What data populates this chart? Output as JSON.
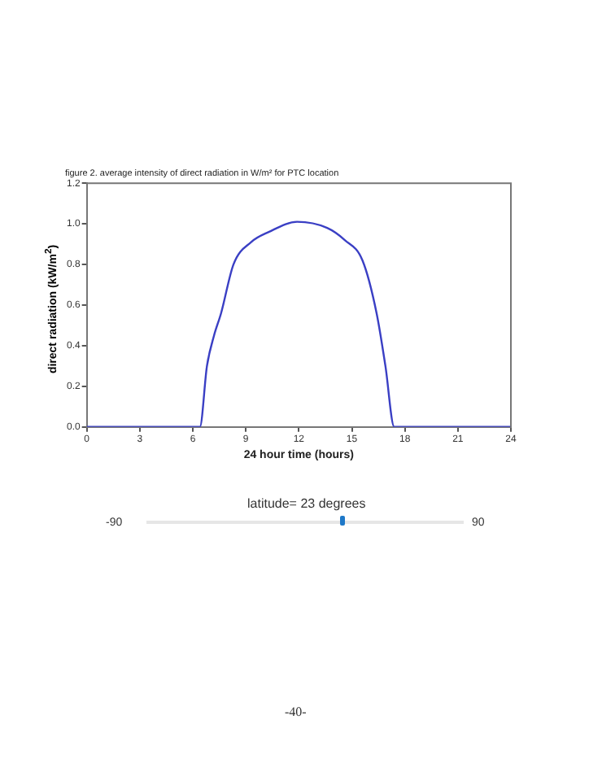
{
  "chart_data": {
    "type": "line",
    "title": "figure 2. average intensity of direct radiation in W/m² for PTC location",
    "xlabel": "24 hour time (hours)",
    "ylabel": "direct radiation (kW/m$^{2}$)",
    "series": [
      {
        "color": "#3a3fc4",
        "x": [
          0,
          6.4,
          6.8,
          7.2,
          7.6,
          8.3,
          9.3,
          10.3,
          11.9,
          13.6,
          14.6,
          15.6,
          16.4,
          16.9,
          17.4,
          24
        ],
        "values": [
          0,
          0,
          0.3,
          0.45,
          0.56,
          0.8,
          0.91,
          0.96,
          1.01,
          0.98,
          0.92,
          0.82,
          0.56,
          0.3,
          0,
          0
        ]
      }
    ],
    "xlim": [
      0,
      24
    ],
    "xticks": [
      0,
      3,
      6,
      9,
      12,
      15,
      18,
      21,
      24
    ],
    "ylim": [
      0,
      1.2
    ],
    "yticks": [
      {
        "value": 0,
        "label": "0.0"
      },
      {
        "value": 0.2,
        "label": "0.2"
      },
      {
        "value": 0.4,
        "label": "0.4"
      },
      {
        "value": 0.6,
        "label": "0.6"
      },
      {
        "value": 0.8,
        "label": "0.8"
      },
      {
        "value": 1,
        "label": "1.0"
      },
      {
        "value": 1.2,
        "label": "1.2"
      }
    ],
    "grid": false,
    "legend": false,
    "marker": "none",
    "line_style": "solid",
    "annotations": [
      "latitude= 23 degrees",
      "-90",
      "90",
      "-40-"
    ]
  }
}
